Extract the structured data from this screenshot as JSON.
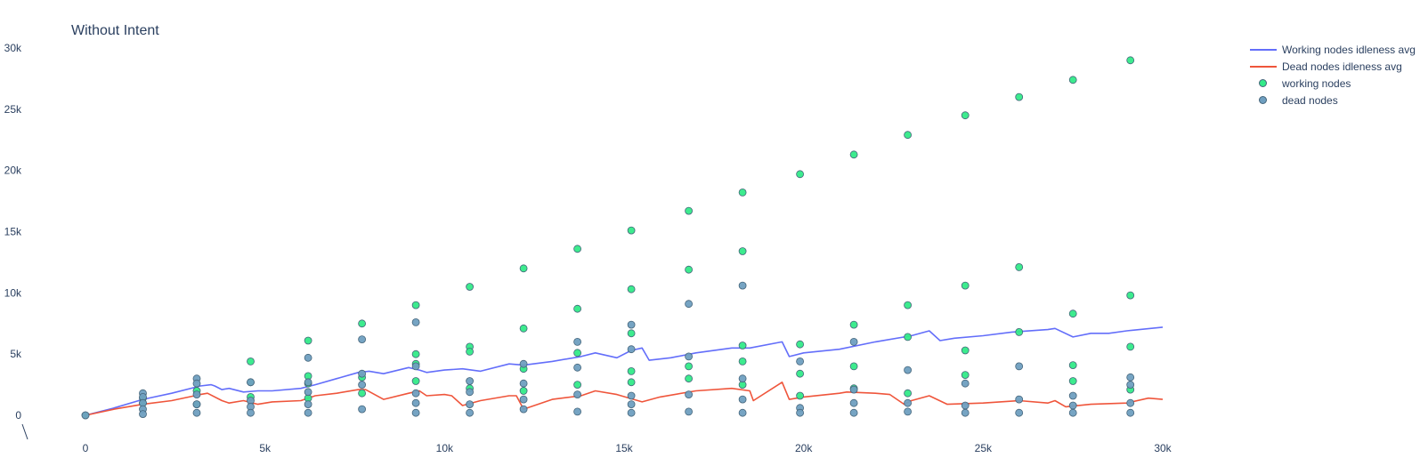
{
  "chart_data": {
    "type": "scatter",
    "title": "Without Intent",
    "xlabel": "",
    "ylabel": "",
    "xlim": [
      0,
      30000
    ],
    "ylim": [
      0,
      30000
    ],
    "x_ticks": [
      {
        "value": 0,
        "label": "0"
      },
      {
        "value": 5000,
        "label": "5k"
      },
      {
        "value": 10000,
        "label": "10k"
      },
      {
        "value": 15000,
        "label": "15k"
      },
      {
        "value": 20000,
        "label": "20k"
      },
      {
        "value": 25000,
        "label": "25k"
      },
      {
        "value": 30000,
        "label": "30k"
      }
    ],
    "y_ticks": [
      {
        "value": 0,
        "label": "0"
      },
      {
        "value": 5000,
        "label": "5k"
      },
      {
        "value": 10000,
        "label": "10k"
      },
      {
        "value": 15000,
        "label": "15k"
      },
      {
        "value": 20000,
        "label": "20k"
      },
      {
        "value": 25000,
        "label": "25k"
      },
      {
        "value": 30000,
        "label": "30k"
      }
    ],
    "grid": false,
    "legend_position": "top-right",
    "series": [
      {
        "name": "Working nodes idleness avg",
        "mode": "lines",
        "color": "#636efa",
        "x": [
          0,
          800,
          1600,
          2400,
          3200,
          3500,
          3600,
          3800,
          4000,
          4400,
          4800,
          5200,
          6000,
          6400,
          7000,
          7600,
          7900,
          8300,
          9000,
          9300,
          9500,
          10000,
          10500,
          11000,
          11800,
          12200,
          13000,
          13800,
          14200,
          14800,
          15200,
          15500,
          15700,
          16300,
          17000,
          18000,
          18500,
          19400,
          19600,
          20000,
          21000,
          22000,
          23000,
          23500,
          23800,
          24200,
          25000,
          25800,
          26800,
          27000,
          27500,
          28000,
          28500,
          29000,
          30000
        ],
        "y": [
          0,
          600,
          1300,
          1800,
          2400,
          2500,
          2400,
          2100,
          2200,
          1900,
          2000,
          2000,
          2200,
          2500,
          3000,
          3500,
          3600,
          3400,
          3900,
          3700,
          3500,
          3700,
          3800,
          3600,
          4200,
          4100,
          4400,
          4800,
          5100,
          4700,
          5300,
          5500,
          4500,
          4700,
          5100,
          5500,
          5500,
          6000,
          4800,
          5100,
          5400,
          6000,
          6500,
          6900,
          6100,
          6300,
          6500,
          6800,
          7000,
          7100,
          6400,
          6700,
          6700,
          6900,
          7200
        ]
      },
      {
        "name": "Dead nodes idleness avg",
        "mode": "lines",
        "color": "#ef553b",
        "x": [
          0,
          800,
          1600,
          2400,
          3200,
          3400,
          3800,
          4000,
          4400,
          4800,
          5200,
          6000,
          6400,
          7000,
          7600,
          7800,
          8300,
          9000,
          9300,
          9500,
          10000,
          10200,
          10500,
          11000,
          11800,
          12000,
          12200,
          13000,
          13800,
          14200,
          14800,
          15500,
          16000,
          17000,
          18000,
          18500,
          18600,
          19400,
          19600,
          20000,
          21000,
          21200,
          22000,
          22400,
          22800,
          23000,
          23500,
          24000,
          25000,
          26000,
          26800,
          27000,
          27300,
          28000,
          29000,
          29600,
          30000
        ],
        "y": [
          0,
          500,
          900,
          1200,
          1700,
          1800,
          1200,
          1000,
          1200,
          900,
          1100,
          1200,
          1600,
          1800,
          2100,
          2100,
          1300,
          1800,
          2000,
          1600,
          1700,
          1600,
          800,
          1200,
          1600,
          1600,
          500,
          1300,
          1600,
          2000,
          1700,
          1100,
          1500,
          2000,
          2200,
          2000,
          1200,
          2700,
          1300,
          1500,
          1800,
          1900,
          1800,
          1700,
          900,
          1200,
          1600,
          900,
          1000,
          1200,
          1000,
          1200,
          700,
          900,
          1000,
          1400,
          1300
        ]
      },
      {
        "name": "working nodes",
        "mode": "markers",
        "color": "#33ea88",
        "x": [
          0,
          1600,
          1600,
          3100,
          3100,
          4600,
          4600,
          4600,
          6200,
          6200,
          6200,
          6200,
          7700,
          7700,
          7700,
          9200,
          9200,
          9200,
          9200,
          10700,
          10700,
          10700,
          10700,
          12200,
          12200,
          12200,
          12200,
          13700,
          13700,
          13700,
          13700,
          15200,
          15200,
          15200,
          15200,
          15200,
          16800,
          16800,
          16800,
          16800,
          18300,
          18300,
          18300,
          18300,
          18300,
          19900,
          19900,
          19900,
          19900,
          21400,
          21400,
          21400,
          21400,
          22900,
          22900,
          22900,
          22900,
          24500,
          24500,
          24500,
          24500,
          26000,
          26000,
          26000,
          27500,
          27500,
          27500,
          27500,
          29100,
          29100,
          29100,
          29100
        ],
        "y": [
          0,
          1000,
          1400,
          900,
          2000,
          4400,
          2700,
          1500,
          6100,
          3200,
          2600,
          1400,
          7500,
          3100,
          1800,
          9000,
          5000,
          4200,
          2800,
          10500,
          5600,
          5200,
          2200,
          12000,
          7100,
          3800,
          2000,
          13600,
          8700,
          5100,
          2500,
          15100,
          10300,
          6700,
          3600,
          2700,
          16700,
          11900,
          4000,
          3000,
          18200,
          13400,
          5700,
          4400,
          2500,
          19700,
          5800,
          3400,
          1600,
          21300,
          7400,
          4000,
          2200,
          22900,
          9000,
          6400,
          1800,
          24500,
          10600,
          5300,
          3300,
          26000,
          12100,
          6800,
          27400,
          8300,
          4100,
          2800,
          29000,
          9800,
          5600,
          2100
        ]
      },
      {
        "name": "dead nodes",
        "mode": "markers",
        "color": "#6f9fc0",
        "x": [
          0,
          1600,
          1600,
          1600,
          1600,
          1600,
          3100,
          3100,
          3100,
          3100,
          3100,
          4600,
          4600,
          4600,
          4600,
          6200,
          6200,
          6200,
          6200,
          6200,
          7700,
          7700,
          7700,
          7700,
          9200,
          9200,
          9200,
          9200,
          9200,
          10700,
          10700,
          10700,
          10700,
          12200,
          12200,
          12200,
          12200,
          13700,
          13700,
          13700,
          13700,
          15200,
          15200,
          15200,
          15200,
          15200,
          16800,
          16800,
          16800,
          16800,
          18300,
          18300,
          18300,
          18300,
          19900,
          19900,
          19900,
          21400,
          21400,
          21400,
          21400,
          22900,
          22900,
          22900,
          24500,
          24500,
          24500,
          26000,
          26000,
          26000,
          27500,
          27500,
          27500,
          29100,
          29100,
          29100,
          29100
        ],
        "y": [
          0,
          1800,
          1500,
          1000,
          500,
          100,
          3000,
          2600,
          1700,
          900,
          200,
          2700,
          1200,
          700,
          200,
          4700,
          2700,
          1900,
          900,
          200,
          6200,
          3400,
          2500,
          500,
          7600,
          4000,
          1800,
          1000,
          200,
          2800,
          1900,
          900,
          200,
          4200,
          2600,
          1300,
          500,
          6000,
          3900,
          1700,
          300,
          7400,
          5400,
          1600,
          900,
          200,
          9100,
          4800,
          1700,
          300,
          10600,
          3000,
          1300,
          200,
          4400,
          600,
          200,
          6000,
          2100,
          1000,
          200,
          3700,
          1000,
          300,
          2600,
          800,
          200,
          4000,
          1300,
          200,
          1600,
          800,
          200,
          3100,
          2500,
          1000,
          200
        ]
      }
    ]
  }
}
